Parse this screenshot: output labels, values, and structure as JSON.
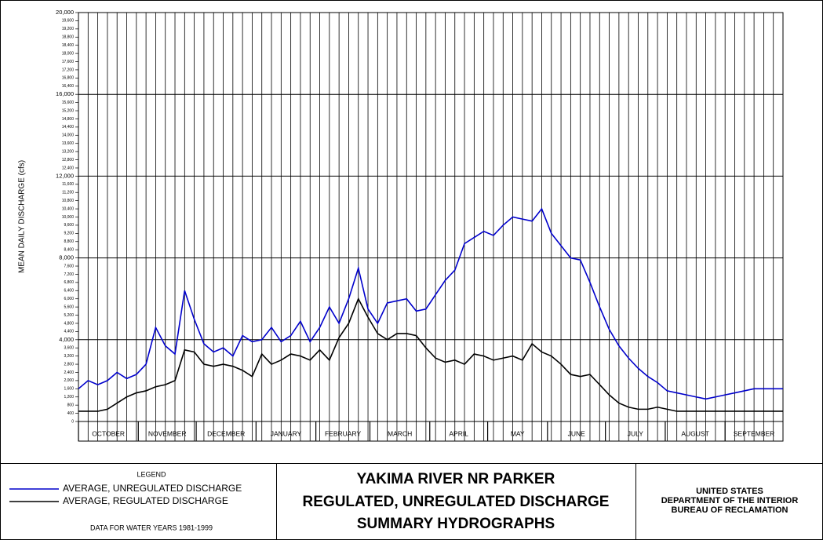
{
  "chart_data": {
    "type": "line",
    "y_label": "MEAN DAILY DISCHARGE  (cfs)",
    "xlim": [
      0,
      365
    ],
    "xgrid_step": 5,
    "xticks": [
      {
        "value": 0,
        "label": "OCTOBER"
      },
      {
        "value": 31,
        "label": "NOVEMBER"
      },
      {
        "value": 61,
        "label": "DECEMBER"
      },
      {
        "value": 92,
        "label": "JANUARY"
      },
      {
        "value": 123,
        "label": "FEBRUARY"
      },
      {
        "value": 151,
        "label": "MARCH"
      },
      {
        "value": 182,
        "label": "APRIL"
      },
      {
        "value": 212,
        "label": "MAY"
      },
      {
        "value": 243,
        "label": "JUNE"
      },
      {
        "value": 273,
        "label": "JULY"
      },
      {
        "value": 304,
        "label": "AUGUST"
      },
      {
        "value": 335,
        "label": "SEPTEMBER"
      }
    ],
    "ylim": [
      0,
      20000
    ],
    "ymajor": [
      4000,
      8000,
      12000,
      16000
    ],
    "yticks": [
      0,
      400,
      800,
      {
        "value": 1200,
        "label": "1,200"
      },
      {
        "value": 1600,
        "label": "1,600"
      },
      {
        "value": 2000,
        "label": "2,000"
      },
      {
        "value": 2400,
        "label": "2,400"
      },
      {
        "value": 2800,
        "label": "2,800"
      },
      {
        "value": 3200,
        "label": "3,200"
      },
      {
        "value": 3600,
        "label": "3,600"
      },
      {
        "value": 4000,
        "label": "4,000"
      },
      {
        "value": 4400,
        "label": "4,400"
      },
      {
        "value": 4800,
        "label": "4,800"
      },
      {
        "value": 5200,
        "label": "5,200"
      },
      {
        "value": 5600,
        "label": "5,600"
      },
      {
        "value": 6000,
        "label": "6,000"
      },
      {
        "value": 6400,
        "label": "6,400"
      },
      {
        "value": 6800,
        "label": "6,800"
      },
      {
        "value": 7200,
        "label": "7,200"
      },
      {
        "value": 7600,
        "label": "7,600"
      },
      {
        "value": 8000,
        "label": "8,000"
      },
      {
        "value": 8400,
        "label": "8,400"
      },
      {
        "value": 8800,
        "label": "8,800"
      },
      {
        "value": 9200,
        "label": "9,200"
      },
      {
        "value": 9600,
        "label": "9,600"
      },
      {
        "value": 10000,
        "label": "10,000"
      },
      {
        "value": 10400,
        "label": "10,400"
      },
      {
        "value": 10800,
        "label": "10,800"
      },
      {
        "value": 11200,
        "label": "11,200"
      },
      {
        "value": 11600,
        "label": "11,600"
      },
      {
        "value": 12000,
        "label": "12,000"
      },
      {
        "value": 12400,
        "label": "12,400"
      },
      {
        "value": 12800,
        "label": "12,800"
      },
      {
        "value": 13200,
        "label": "13,200"
      },
      {
        "value": 13600,
        "label": "13,600"
      },
      {
        "value": 14000,
        "label": "14,000"
      },
      {
        "value": 14400,
        "label": "14,400"
      },
      {
        "value": 14800,
        "label": "14,800"
      },
      {
        "value": 15200,
        "label": "15,200"
      },
      {
        "value": 15600,
        "label": "15,600"
      },
      {
        "value": 16000,
        "label": "16,000"
      },
      {
        "value": 16400,
        "label": "16,400"
      },
      {
        "value": 16800,
        "label": "16,800"
      },
      {
        "value": 17200,
        "label": "17,200"
      },
      {
        "value": 17600,
        "label": "17,600"
      },
      {
        "value": 18000,
        "label": "18,000"
      },
      {
        "value": 18400,
        "label": "18,400"
      },
      {
        "value": 18800,
        "label": "18,800"
      },
      {
        "value": 19200,
        "label": "19,200"
      },
      {
        "value": 19600,
        "label": "19,600"
      },
      {
        "value": 20000,
        "label": "20,000"
      }
    ],
    "x": [
      0,
      5,
      10,
      15,
      20,
      25,
      30,
      35,
      40,
      45,
      50,
      55,
      60,
      65,
      70,
      75,
      80,
      85,
      90,
      95,
      100,
      105,
      110,
      115,
      120,
      125,
      130,
      135,
      140,
      145,
      150,
      155,
      160,
      165,
      170,
      175,
      180,
      185,
      190,
      195,
      200,
      205,
      210,
      215,
      220,
      225,
      230,
      235,
      240,
      245,
      250,
      255,
      260,
      265,
      270,
      275,
      280,
      285,
      290,
      295,
      300,
      305,
      310,
      315,
      320,
      325,
      330,
      335,
      340,
      345,
      350,
      355,
      360,
      365
    ],
    "series": [
      {
        "name": "AVERAGE, UNREGULATED DISCHARGE",
        "color": "#0000cc",
        "values": [
          1600,
          2000,
          1800,
          2000,
          2400,
          2100,
          2300,
          2800,
          4600,
          3700,
          3300,
          6400,
          5000,
          3800,
          3400,
          3600,
          3200,
          4200,
          3900,
          4000,
          4600,
          3900,
          4200,
          4900,
          3900,
          4600,
          5600,
          4800,
          6000,
          7500,
          5500,
          4800,
          5800,
          5900,
          6000,
          5400,
          5500,
          6200,
          6900,
          7400,
          8700,
          9000,
          9300,
          9100,
          9600,
          10000,
          9900,
          9800,
          10400,
          9200,
          8600,
          8000,
          7900,
          6800,
          5600,
          4500,
          3700,
          3100,
          2600,
          2200,
          1900,
          1500,
          1400,
          1300,
          1200,
          1100,
          1200,
          1300,
          1400,
          1500,
          1600,
          1600,
          1600,
          1600
        ]
      },
      {
        "name": "AVERAGE, REGULATED DISCHARGE",
        "color": "#000000",
        "values": [
          500,
          500,
          500,
          600,
          900,
          1200,
          1400,
          1500,
          1700,
          1800,
          2000,
          3500,
          3400,
          2800,
          2700,
          2800,
          2700,
          2500,
          2200,
          3300,
          2800,
          3000,
          3300,
          3200,
          3000,
          3500,
          3000,
          4100,
          4800,
          6000,
          5100,
          4300,
          4000,
          4300,
          4300,
          4200,
          3600,
          3100,
          2900,
          3000,
          2800,
          3300,
          3200,
          3000,
          3100,
          3200,
          3000,
          3800,
          3400,
          3200,
          2800,
          2300,
          2200,
          2300,
          1800,
          1300,
          900,
          700,
          600,
          600,
          700,
          600,
          500,
          500,
          500,
          500,
          500,
          500,
          500,
          500,
          500,
          500,
          500,
          500
        ]
      }
    ],
    "legend_title": "LEGEND",
    "note": "DATA FOR WATER YEARS 1981-1999",
    "title_lines": [
      "YAKIMA RIVER NR PARKER",
      "REGULATED, UNREGULATED DISCHARGE",
      "SUMMARY HYDROGRAPHS"
    ],
    "agency_lines": [
      "UNITED STATES",
      "DEPARTMENT OF THE INTERIOR",
      "BUREAU OF RECLAMATION"
    ]
  }
}
